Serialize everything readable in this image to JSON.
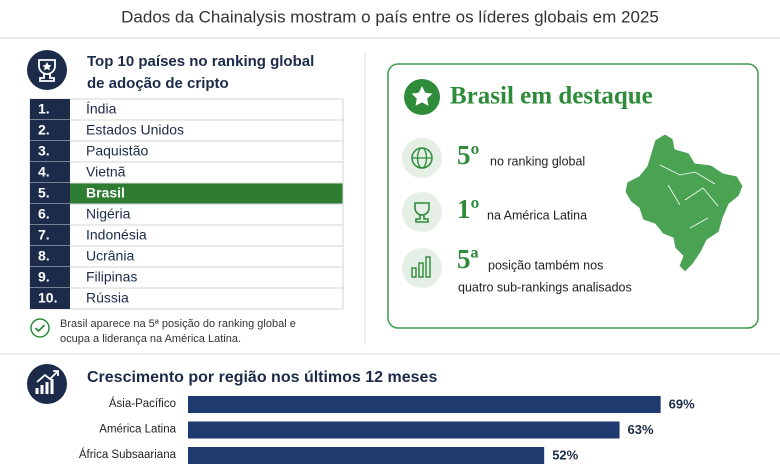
{
  "header": {
    "subtitle": "Dados da Chainalysis mostram o país entre os líderes globais em 2025"
  },
  "ranking": {
    "title_lines": [
      "Top 10 países no ranking global",
      "de adoção de cripto"
    ],
    "rows": [
      {
        "rank": "1.",
        "country": "Índia"
      },
      {
        "rank": "2.",
        "country": "Estados Unidos"
      },
      {
        "rank": "3.",
        "country": "Paquistão"
      },
      {
        "rank": "4.",
        "country": "Vietnã"
      },
      {
        "rank": "5.",
        "country": "Brasil",
        "highlighted": true
      },
      {
        "rank": "6.",
        "country": "Nigéria"
      },
      {
        "rank": "7.",
        "country": "Indonésia"
      },
      {
        "rank": "8.",
        "country": "Ucrânia"
      },
      {
        "rank": "9.",
        "country": "Filipinas"
      },
      {
        "rank": "10.",
        "country": "Rússia"
      }
    ],
    "note_lines": [
      "Brasil aparece na 5ª posição do ranking global e",
      "ocupa a liderança na América Latina."
    ]
  },
  "highlight": {
    "title": "Brasil em destaque",
    "items": [
      {
        "rank": "5º",
        "lines": [
          "no ranking global"
        ]
      },
      {
        "rank": "1º",
        "lines": [
          "na América Latina"
        ]
      },
      {
        "rank": "5ª",
        "lines": [
          "posição também nos",
          "quatro sub-rankings analisados"
        ]
      }
    ]
  },
  "chart_data": {
    "type": "bar",
    "orientation": "horizontal",
    "title": "Crescimento por região nos últimos 12 meses",
    "categories": [
      "Ásia-Pacífico",
      "América Latina",
      "África Subsaariana"
    ],
    "values": [
      69,
      63,
      52
    ],
    "value_labels": [
      "69%",
      "63%",
      "52%"
    ],
    "color": "#1f3a6e"
  }
}
